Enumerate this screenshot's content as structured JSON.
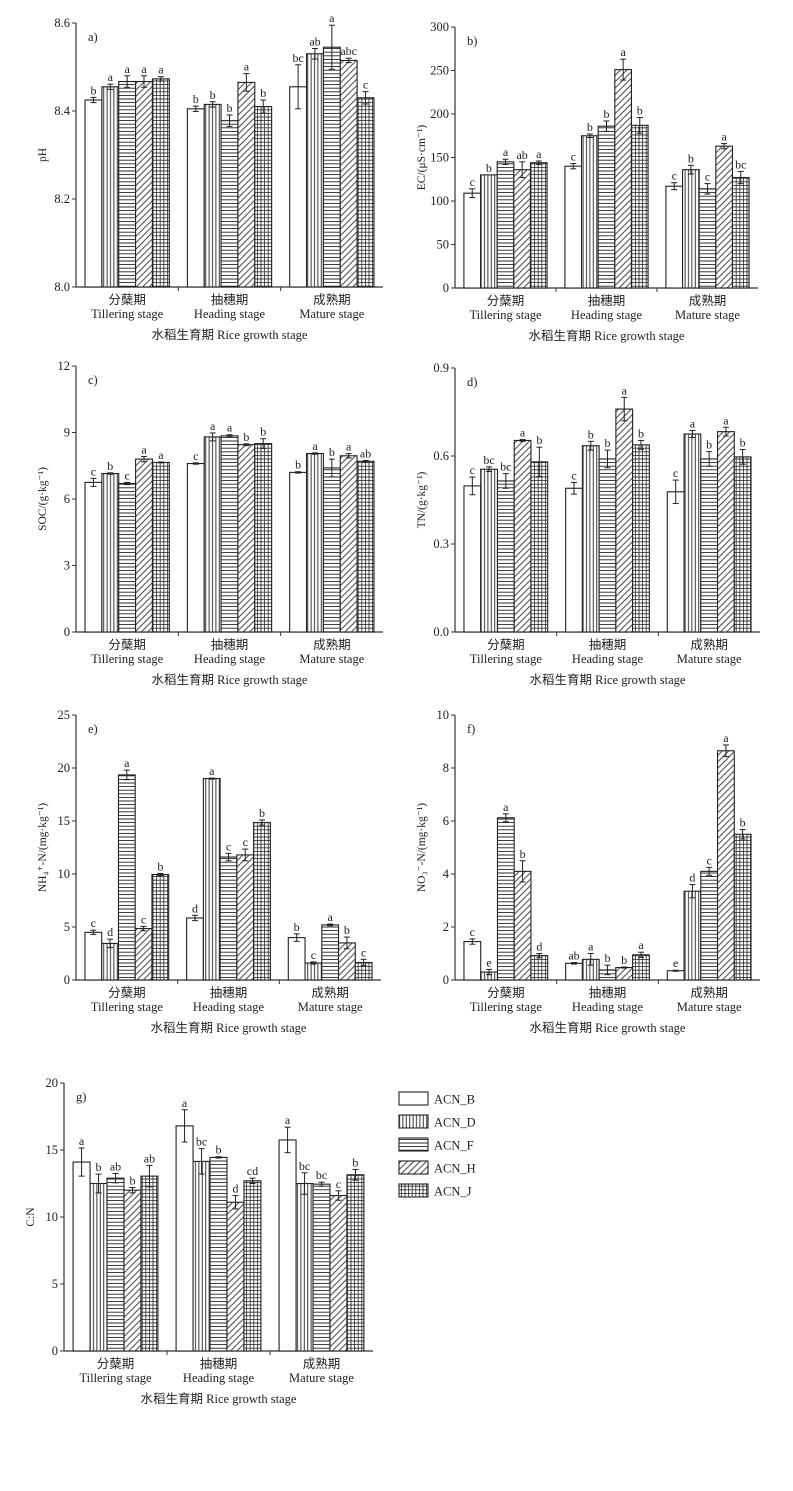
{
  "chart_data": {
    "type": "bar",
    "shared": {
      "categories_cn": [
        "分蘖期",
        "抽穗期",
        "成熟期"
      ],
      "categories_en": [
        "Tillering stage",
        "Heading stage",
        "Mature stage"
      ],
      "xlabel": "水稻生育期 Rice growth stage",
      "series_names": [
        "ACN_B",
        "ACN_D",
        "ACN_F",
        "ACN_H",
        "ACN_J"
      ],
      "series_patterns": [
        "blank",
        "vertical-lines",
        "horizontal-lines",
        "diagonal-lines",
        "grid"
      ]
    },
    "legend": {
      "placement": "right-of-panel-g",
      "entries": [
        "ACN_B",
        "ACN_D",
        "ACN_F",
        "ACN_H",
        "ACN_J"
      ]
    },
    "panels": [
      {
        "id": "a",
        "panel_label": "a)",
        "ylabel": "pH",
        "ylim": [
          8.0,
          8.6
        ],
        "yticks": [
          8.0,
          8.2,
          8.4,
          8.6
        ],
        "tick_decimals": 1,
        "series": [
          {
            "name": "ACN_B",
            "values": [
              8.425,
              8.405,
              8.455
            ],
            "errors": [
              0.006,
              0.006,
              0.05
            ],
            "letters": [
              "b",
              "b",
              "bc"
            ]
          },
          {
            "name": "ACN_D",
            "values": [
              8.455,
              8.415,
              8.53
            ],
            "errors": [
              0.006,
              0.006,
              0.012
            ],
            "letters": [
              "a",
              "b",
              "ab"
            ]
          },
          {
            "name": "ACN_F",
            "values": [
              8.467,
              8.378,
              8.545
            ],
            "errors": [
              0.013,
              0.013,
              0.05
            ],
            "letters": [
              "a",
              "b",
              "a"
            ]
          },
          {
            "name": "ACN_H",
            "values": [
              8.467,
              8.465,
              8.515
            ],
            "errors": [
              0.013,
              0.02,
              0.005
            ],
            "letters": [
              "a",
              "a",
              "abc"
            ]
          },
          {
            "name": "ACN_J",
            "values": [
              8.473,
              8.41,
              8.43
            ],
            "errors": [
              0.005,
              0.015,
              0.014
            ],
            "letters": [
              "a",
              "b",
              "c"
            ]
          }
        ]
      },
      {
        "id": "b",
        "panel_label": "b)",
        "ylabel": "EC/(μS·cm⁻¹)",
        "ylim": [
          0,
          300
        ],
        "yticks": [
          0,
          50,
          100,
          150,
          200,
          250,
          300
        ],
        "tick_decimals": 0,
        "series": [
          {
            "name": "ACN_B",
            "values": [
              109,
              140,
              117
            ],
            "errors": [
              5,
              3,
              4
            ],
            "letters": [
              "c",
              "c",
              "c"
            ]
          },
          {
            "name": "ACN_D",
            "values": [
              130,
              175,
              136
            ],
            "errors": [
              0,
              2,
              5
            ],
            "letters": [
              "b",
              "b",
              "b"
            ]
          },
          {
            "name": "ACN_F",
            "values": [
              145,
              186,
              114
            ],
            "errors": [
              3,
              6,
              6
            ],
            "letters": [
              "a",
              "b",
              "c"
            ]
          },
          {
            "name": "ACN_H",
            "values": [
              136,
              251,
              163
            ],
            "errors": [
              9,
              12,
              3
            ],
            "letters": [
              "ab",
              "a",
              "a"
            ]
          },
          {
            "name": "ACN_J",
            "values": [
              144,
              187,
              127
            ],
            "errors": [
              2,
              9,
              7
            ],
            "letters": [
              "a",
              "b",
              "bc"
            ]
          }
        ]
      },
      {
        "id": "c",
        "panel_label": "c)",
        "ylabel": "SOC/(g·kg⁻¹)",
        "ylim": [
          0,
          12
        ],
        "yticks": [
          0,
          3,
          6,
          9,
          12
        ],
        "tick_decimals": 0,
        "series": [
          {
            "name": "ACN_B",
            "values": [
              6.75,
              7.6,
              7.2
            ],
            "errors": [
              0.18,
              0.03,
              0.03
            ],
            "letters": [
              "c",
              "c",
              "b"
            ]
          },
          {
            "name": "ACN_D",
            "values": [
              7.15,
              8.8,
              8.05
            ],
            "errors": [
              0.03,
              0.18,
              0.03
            ],
            "letters": [
              "b",
              "a",
              "a"
            ]
          },
          {
            "name": "ACN_F",
            "values": [
              6.7,
              8.85,
              7.4
            ],
            "errors": [
              0.05,
              0.05,
              0.4
            ],
            "letters": [
              "c",
              "a",
              "b"
            ]
          },
          {
            "name": "ACN_H",
            "values": [
              7.8,
              8.45,
              7.95
            ],
            "errors": [
              0.12,
              0.04,
              0.1
            ],
            "letters": [
              "a",
              "b",
              "a"
            ]
          },
          {
            "name": "ACN_J",
            "values": [
              7.65,
              8.5,
              7.7
            ],
            "errors": [
              0.02,
              0.22,
              0.04
            ],
            "letters": [
              "a",
              "b",
              "ab"
            ]
          }
        ]
      },
      {
        "id": "d",
        "panel_label": "d)",
        "ylabel": "TN/(g·kg⁻¹)",
        "ylim": [
          0,
          0.9
        ],
        "yticks": [
          0.0,
          0.3,
          0.6,
          0.9
        ],
        "tick_decimals": 1,
        "series": [
          {
            "name": "ACN_B",
            "values": [
              0.498,
              0.49,
              0.478
            ],
            "errors": [
              0.03,
              0.02,
              0.04
            ],
            "letters": [
              "c",
              "c",
              "c"
            ]
          },
          {
            "name": "ACN_D",
            "values": [
              0.555,
              0.635,
              0.675
            ],
            "errors": [
              0.008,
              0.015,
              0.012
            ],
            "letters": [
              "bc",
              "b",
              "a"
            ]
          },
          {
            "name": "ACN_F",
            "values": [
              0.515,
              0.59,
              0.59
            ],
            "errors": [
              0.025,
              0.03,
              0.025
            ],
            "letters": [
              "bc",
              "b",
              "b"
            ]
          },
          {
            "name": "ACN_H",
            "values": [
              0.653,
              0.76,
              0.683
            ],
            "errors": [
              0.003,
              0.04,
              0.015
            ],
            "letters": [
              "a",
              "a",
              "a"
            ]
          },
          {
            "name": "ACN_J",
            "values": [
              0.58,
              0.638,
              0.597
            ],
            "errors": [
              0.05,
              0.015,
              0.025
            ],
            "letters": [
              "b",
              "b",
              "b"
            ]
          }
        ]
      },
      {
        "id": "e",
        "panel_label": "e)",
        "ylabel": "NH₄⁺-N/(mg·kg⁻¹)",
        "ylim": [
          0,
          25
        ],
        "yticks": [
          0,
          5,
          10,
          15,
          20,
          25
        ],
        "tick_decimals": 0,
        "series": [
          {
            "name": "ACN_B",
            "values": [
              4.5,
              5.85,
              4.0
            ],
            "errors": [
              0.2,
              0.25,
              0.35
            ],
            "letters": [
              "c",
              "d",
              "b"
            ]
          },
          {
            "name": "ACN_D",
            "values": [
              3.45,
              19.0,
              1.6
            ],
            "errors": [
              0.4,
              0.05,
              0.1
            ],
            "letters": [
              "d",
              "a",
              "c"
            ]
          },
          {
            "name": "ACN_F",
            "values": [
              19.35,
              11.6,
              5.2
            ],
            "errors": [
              0.45,
              0.35,
              0.08
            ],
            "letters": [
              "a",
              "c",
              "a"
            ]
          },
          {
            "name": "ACN_H",
            "values": [
              4.85,
              11.8,
              3.5
            ],
            "errors": [
              0.2,
              0.55,
              0.55
            ],
            "letters": [
              "c",
              "c",
              "b"
            ]
          },
          {
            "name": "ACN_J",
            "values": [
              9.95,
              14.85,
              1.65
            ],
            "errors": [
              0.1,
              0.25,
              0.3
            ],
            "letters": [
              "b",
              "b",
              "c"
            ]
          }
        ]
      },
      {
        "id": "f",
        "panel_label": "f)",
        "ylabel": "NO₃⁻-N/(mg·kg⁻¹)",
        "ylim": [
          0,
          10
        ],
        "yticks": [
          0,
          2,
          4,
          6,
          8,
          10
        ],
        "tick_decimals": 0,
        "series": [
          {
            "name": "ACN_B",
            "values": [
              1.45,
              0.63,
              0.35
            ],
            "errors": [
              0.1,
              0.03,
              0.02
            ],
            "letters": [
              "c",
              "ab",
              "e"
            ]
          },
          {
            "name": "ACN_D",
            "values": [
              0.3,
              0.78,
              3.35
            ],
            "errors": [
              0.1,
              0.22,
              0.25
            ],
            "letters": [
              "e",
              "a",
              "d"
            ]
          },
          {
            "name": "ACN_F",
            "values": [
              6.12,
              0.38,
              4.1
            ],
            "errors": [
              0.15,
              0.18,
              0.15
            ],
            "letters": [
              "a",
              "b",
              "c"
            ]
          },
          {
            "name": "ACN_H",
            "values": [
              4.1,
              0.47,
              8.65
            ],
            "errors": [
              0.4,
              0.02,
              0.22
            ],
            "letters": [
              "b",
              "b",
              "a"
            ]
          },
          {
            "name": "ACN_J",
            "values": [
              0.92,
              0.95,
              5.5
            ],
            "errors": [
              0.08,
              0.1,
              0.18
            ],
            "letters": [
              "d",
              "a",
              "b"
            ]
          }
        ]
      },
      {
        "id": "g",
        "panel_label": "g)",
        "ylabel": "C:N",
        "ylim": [
          0,
          20
        ],
        "yticks": [
          0,
          5,
          10,
          15,
          20
        ],
        "tick_decimals": 0,
        "series": [
          {
            "name": "ACN_B",
            "values": [
              14.1,
              16.8,
              15.75
            ],
            "errors": [
              1.05,
              1.2,
              0.95
            ],
            "letters": [
              "a",
              "a",
              "a"
            ]
          },
          {
            "name": "ACN_D",
            "values": [
              12.5,
              14.15,
              12.5
            ],
            "errors": [
              0.7,
              0.95,
              0.8
            ],
            "letters": [
              "b",
              "bc",
              "bc"
            ]
          },
          {
            "name": "ACN_F",
            "values": [
              12.9,
              14.45,
              12.45
            ],
            "errors": [
              0.35,
              0.05,
              0.15
            ],
            "letters": [
              "ab",
              "b",
              "bc"
            ]
          },
          {
            "name": "ACN_H",
            "values": [
              12.0,
              11.1,
              11.6
            ],
            "errors": [
              0.2,
              0.5,
              0.35
            ],
            "letters": [
              "b",
              "d",
              "c"
            ]
          },
          {
            "name": "ACN_J",
            "values": [
              13.05,
              12.7,
              13.15
            ],
            "errors": [
              0.8,
              0.2,
              0.4
            ],
            "letters": [
              "ab",
              "cd",
              "b"
            ]
          }
        ]
      }
    ]
  }
}
